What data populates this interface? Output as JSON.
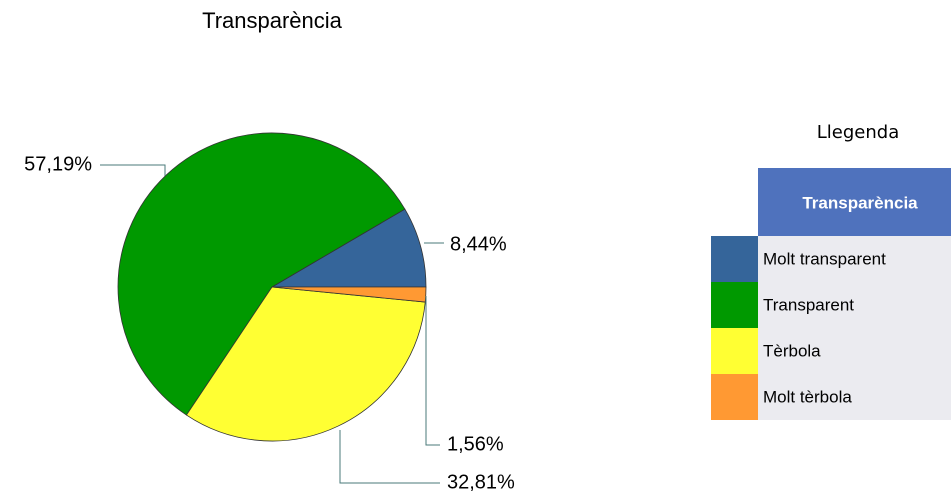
{
  "chart_data": {
    "type": "pie",
    "title": "Transparència",
    "categories": [
      "Molt transparent",
      "Transparent",
      "Tèrbola",
      "Molt tèrbola"
    ],
    "values": [
      8.44,
      57.19,
      32.81,
      1.56
    ],
    "value_labels": [
      "8,44%",
      "57,19%",
      "32,81%",
      "1,56%"
    ],
    "colors": [
      "#35659a",
      "#009900",
      "#ffff33",
      "#ff9933"
    ],
    "legend_title": "Llegenda",
    "legend_header": "Transparència"
  }
}
